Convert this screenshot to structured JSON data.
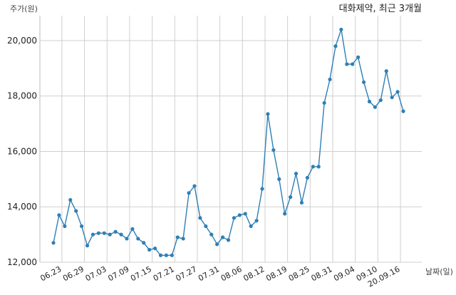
{
  "chart_data": {
    "type": "line",
    "title": "대화제약, 최근 3개월",
    "ylabel": "주가(원)",
    "xlabel": "날짜(일)",
    "ylim": [
      12000,
      20900
    ],
    "yticks": [
      12000,
      14000,
      16000,
      18000,
      20000
    ],
    "ytick_labels": [
      "12,000",
      "14,000",
      "16,000",
      "18,000",
      "20,000"
    ],
    "grid": true,
    "x_ticks": [
      {
        "label": "06.23",
        "index": 1.5
      },
      {
        "label": "06.29",
        "index": 5.5
      },
      {
        "label": "07.03",
        "index": 9.5
      },
      {
        "label": "07.09",
        "index": 13.5
      },
      {
        "label": "07.15",
        "index": 17.5
      },
      {
        "label": "07.21",
        "index": 21.5
      },
      {
        "label": "07.27",
        "index": 25.5
      },
      {
        "label": "07.31",
        "index": 29.5
      },
      {
        "label": "08.06",
        "index": 33.5
      },
      {
        "label": "08.12",
        "index": 37.5
      },
      {
        "label": "08.19",
        "index": 41.5
      },
      {
        "label": "08.25",
        "index": 45.5
      },
      {
        "label": "08.31",
        "index": 49.5
      },
      {
        "label": "09.04",
        "index": 53.5
      },
      {
        "label": "09.10",
        "index": 57.5
      },
      {
        "label": "20.09.16",
        "index": 61.5
      }
    ],
    "series": [
      {
        "color": "#2f7fb5",
        "values": [
          12700,
          13700,
          13300,
          14250,
          13850,
          13300,
          12600,
          13000,
          13050,
          13050,
          13000,
          13100,
          13000,
          12850,
          13200,
          12850,
          12700,
          12450,
          12500,
          12250,
          12250,
          12250,
          12900,
          12850,
          14500,
          14750,
          13600,
          13300,
          13000,
          12650,
          12900,
          12800,
          13600,
          13700,
          13750,
          13300,
          13500,
          14650,
          17350,
          16050,
          15000,
          13750,
          14350,
          15200,
          14150,
          15050,
          15450,
          15450,
          17750,
          18600,
          19800,
          20400,
          19150,
          19150,
          19400,
          18500,
          17800,
          17600,
          17850,
          18900,
          17950,
          18150,
          17450
        ]
      }
    ]
  }
}
